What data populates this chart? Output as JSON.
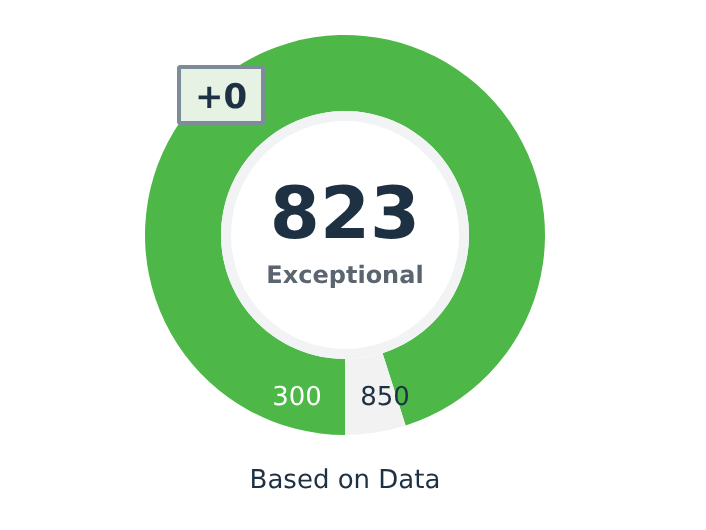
{
  "chart_data": {
    "type": "donut",
    "title": "Based on Data",
    "categories": [
      null,
      null
    ],
    "values": [
      95.1,
      4.9
    ],
    "colors": [
      "#4db848",
      "#f2f2f2"
    ],
    "annotations": [
      "823",
      "Exceptional",
      "300",
      "850",
      "+0"
    ]
  }
}
